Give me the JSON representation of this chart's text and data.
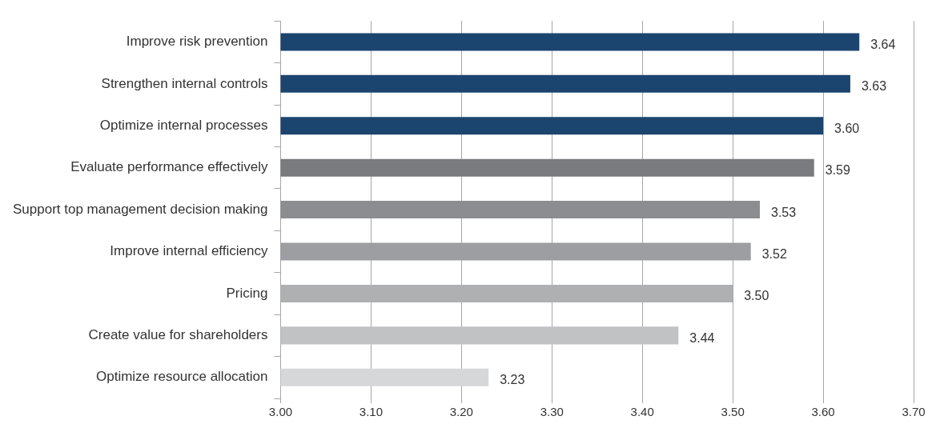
{
  "chart_data": {
    "type": "bar",
    "orientation": "horizontal",
    "categories": [
      "Improve risk prevention",
      "Strengthen internal controls",
      "Optimize internal processes",
      "Evaluate performance effectively",
      "Support top management decision making",
      "Improve internal efficiency",
      "Pricing",
      "Create value for shareholders",
      "Optimize resource allocation"
    ],
    "values": [
      3.64,
      3.63,
      3.6,
      3.59,
      3.53,
      3.52,
      3.5,
      3.44,
      3.23
    ],
    "colors": [
      "#1b456e",
      "#1b456e",
      "#1b456e",
      "#7a7b7e",
      "#8c8d90",
      "#9d9ea1",
      "#afb0b2",
      "#c1c2c4",
      "#d6d7d8"
    ],
    "value_labels": [
      "3.64",
      "3.63",
      "3.60",
      "3.59",
      "3.53",
      "3.52",
      "3.50",
      "3.44",
      "3.23"
    ],
    "xlim": [
      3,
      3.7
    ],
    "xticks": [
      {
        "value": 3,
        "label": "3.00"
      },
      {
        "value": 3.1,
        "label": "3.10"
      },
      {
        "value": 3.2,
        "label": "3.20"
      },
      {
        "value": 3.3,
        "label": "3.30"
      },
      {
        "value": 3.4,
        "label": "3.40"
      },
      {
        "value": 3.5,
        "label": "3.50"
      },
      {
        "value": 3.6,
        "label": "3.60"
      },
      {
        "value": 3.7,
        "label": "3.70"
      }
    ],
    "grid": "x",
    "legend": false
  }
}
